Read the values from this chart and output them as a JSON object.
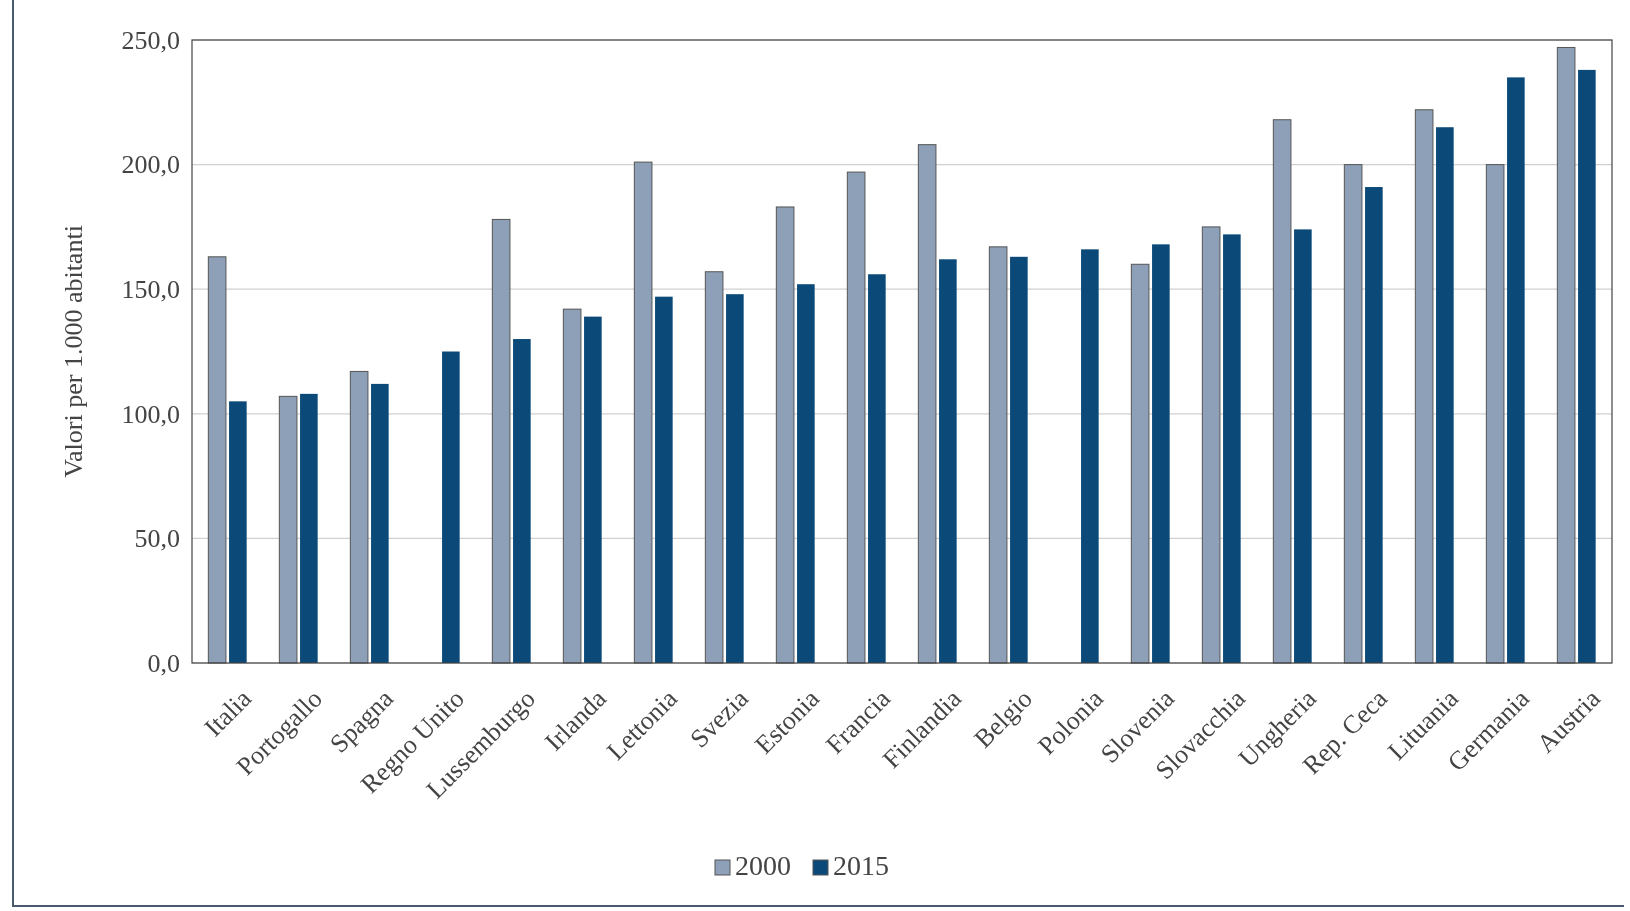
{
  "chart_data": {
    "type": "bar",
    "ylabel": "Valori per 1.000 abitanti",
    "categories": [
      "Italia",
      "Portogallo",
      "Spagna",
      "Regno Unito",
      "Lussemburgo",
      "Irlanda",
      "Lettonia",
      "Svezia",
      "Estonia",
      "Francia",
      "Finlandia",
      "Belgio",
      "Polonia",
      "Slovenia",
      "Slovacchia",
      "Ungheria",
      "Rep. Ceca",
      "Lituania",
      "Germania",
      "Austria"
    ],
    "series": [
      {
        "name": "2000",
        "color": "#8da0b8",
        "values": [
          163,
          107,
          117,
          null,
          178,
          142,
          201,
          157,
          183,
          197,
          208,
          167,
          null,
          160,
          175,
          218,
          200,
          222,
          200,
          247
        ]
      },
      {
        "name": "2015",
        "color": "#0b4a78",
        "values": [
          105,
          108,
          112,
          125,
          130,
          139,
          147,
          148,
          152,
          156,
          162,
          163,
          166,
          168,
          172,
          174,
          191,
          215,
          235,
          238
        ]
      }
    ],
    "ylim": [
      0,
      250
    ],
    "yticks": [
      {
        "value": 0,
        "label": "0,0"
      },
      {
        "value": 50,
        "label": "50,0"
      },
      {
        "value": 100,
        "label": "100,0"
      },
      {
        "value": 150,
        "label": "150,0"
      },
      {
        "value": 200,
        "label": "200,0"
      },
      {
        "value": 250,
        "label": "250,0"
      }
    ],
    "grid": "y",
    "legend": "bottom"
  }
}
